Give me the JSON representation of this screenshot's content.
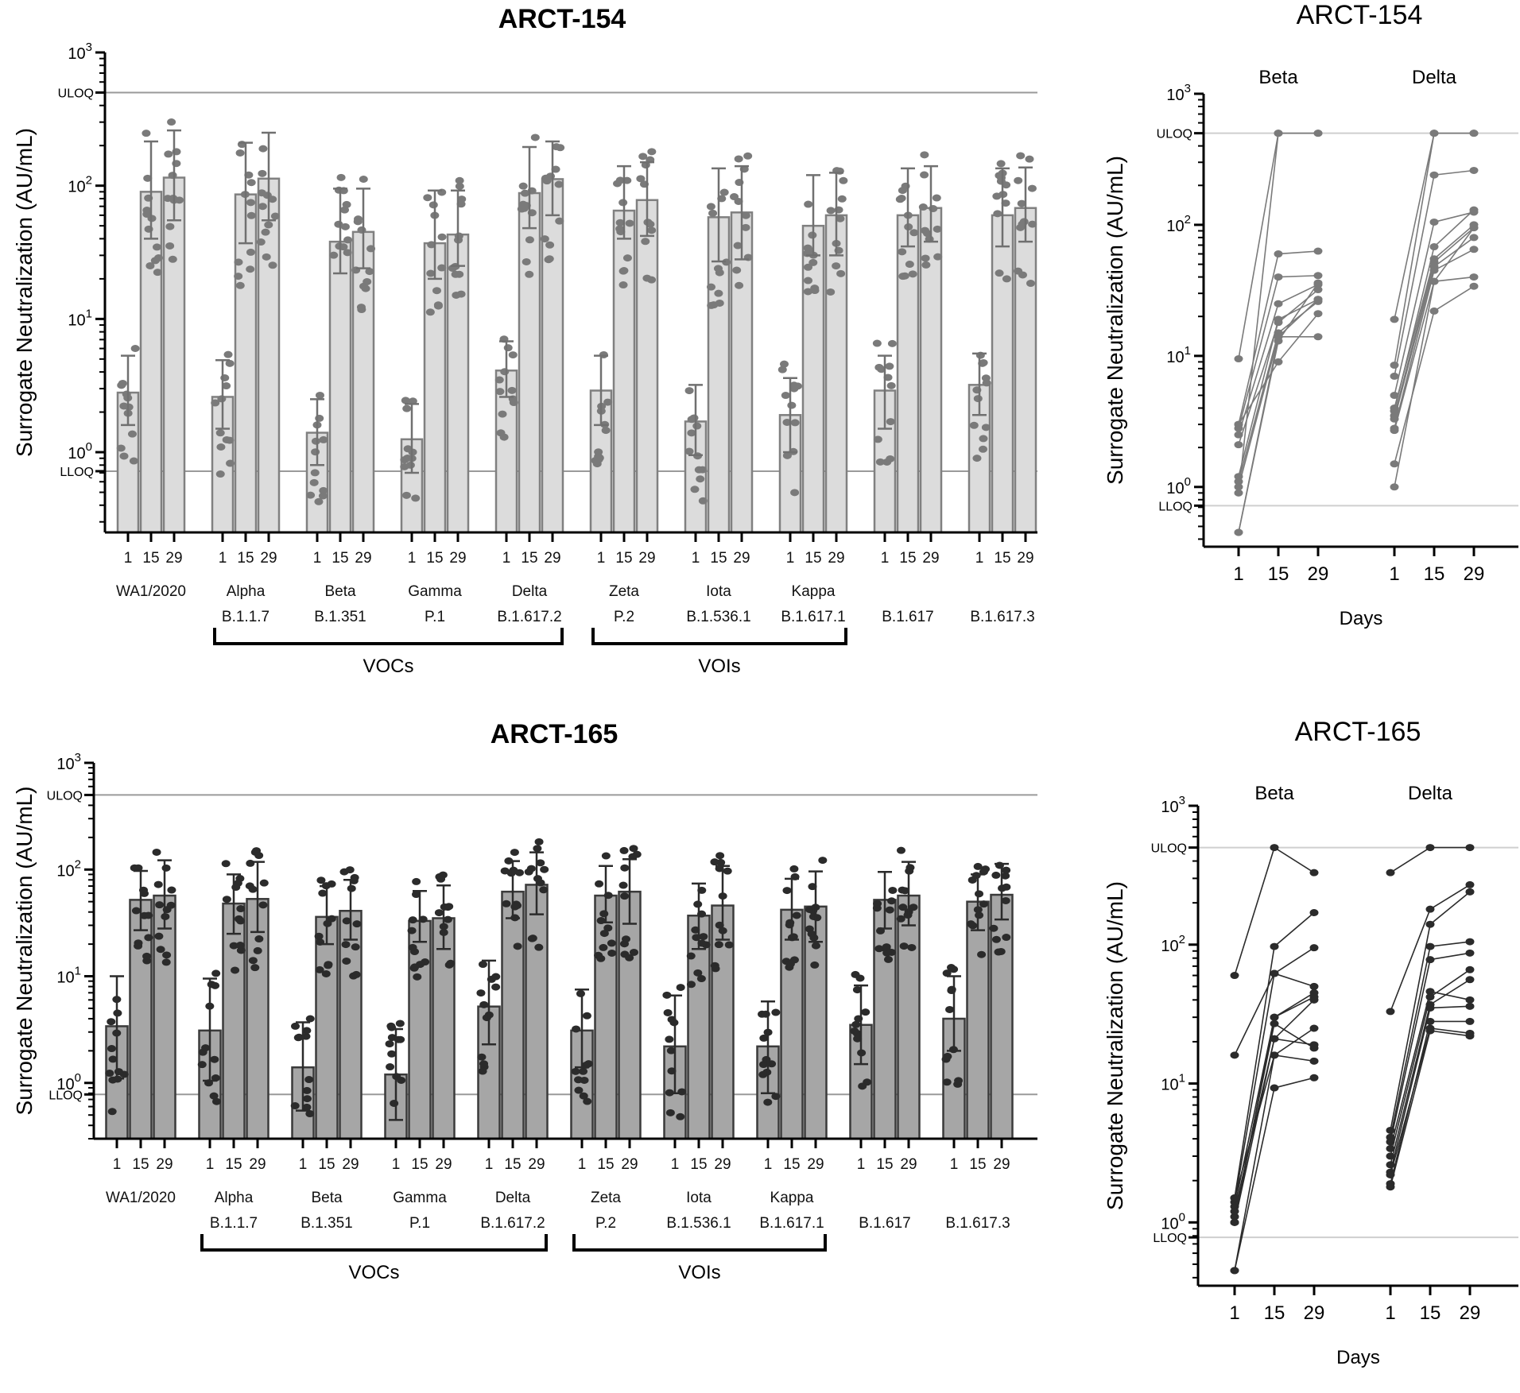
{
  "chart_data": [
    {
      "id": "top-bar",
      "type": "bar",
      "title": "ARCT-154",
      "ylabel": "Surrogate Neutralization (AU/mL)",
      "yscale": "log",
      "ylim": [
        0.25,
        1000
      ],
      "yticks": [
        "10^0",
        "10^1",
        "10^2",
        "10^3"
      ],
      "reference_lines": [
        {
          "label": "ULOQ",
          "value": 500
        },
        {
          "label": "LLOQ",
          "value": 0.72
        }
      ],
      "days": [
        "1",
        "15",
        "29"
      ],
      "categories": [
        {
          "name": "WA1/2020",
          "lineage": "",
          "means": [
            2.8,
            90,
            115
          ],
          "err_low": [
            1.6,
            40,
            55
          ],
          "err_high": [
            5.3,
            215,
            260
          ]
        },
        {
          "name": "Alpha",
          "lineage": "B.1.1.7",
          "means": [
            2.6,
            86,
            113
          ],
          "err_low": [
            1.5,
            37,
            55
          ],
          "err_high": [
            4.9,
            210,
            250
          ]
        },
        {
          "name": "Beta",
          "lineage": "B.1.351",
          "means": [
            1.4,
            38,
            45
          ],
          "err_low": [
            0.8,
            22,
            24
          ],
          "err_high": [
            2.5,
            95,
            95
          ]
        },
        {
          "name": "Gamma",
          "lineage": "P.1",
          "means": [
            1.25,
            37,
            43
          ],
          "err_low": [
            0.7,
            20,
            25
          ],
          "err_high": [
            2.3,
            92,
            92
          ]
        },
        {
          "name": "Delta",
          "lineage": "B.1.617.2",
          "means": [
            4.1,
            88,
            112
          ],
          "err_low": [
            2.6,
            48,
            60
          ],
          "err_high": [
            6.8,
            195,
            215
          ]
        },
        {
          "name": "Zeta",
          "lineage": "P.2",
          "means": [
            2.9,
            65,
            78
          ],
          "err_low": [
            1.6,
            40,
            42
          ],
          "err_high": [
            5.3,
            140,
            150
          ]
        },
        {
          "name": "Iota",
          "lineage": "B.1.536.1",
          "means": [
            1.7,
            58,
            63
          ],
          "err_low": [
            0.95,
            27,
            28
          ],
          "err_high": [
            3.2,
            135,
            140
          ]
        },
        {
          "name": "Kappa",
          "lineage": "B.1.617.1",
          "means": [
            1.9,
            50,
            60
          ],
          "err_low": [
            1.0,
            30,
            30
          ],
          "err_high": [
            3.6,
            120,
            125
          ]
        },
        {
          "name": "",
          "lineage": "B.1.617",
          "means": [
            2.9,
            60,
            68
          ],
          "err_low": [
            1.5,
            35,
            38
          ],
          "err_high": [
            5.3,
            135,
            140
          ]
        },
        {
          "name": "",
          "lineage": "B.1.617.3",
          "means": [
            3.2,
            60,
            68
          ],
          "err_low": [
            1.9,
            35,
            38
          ],
          "err_high": [
            5.5,
            135,
            137
          ]
        }
      ],
      "brackets": [
        {
          "label": "VOCs",
          "from": 1,
          "to": 4
        },
        {
          "label": "VOIs",
          "from": 5,
          "to": 7
        }
      ],
      "points_per_bar": 12,
      "bar_fill": "#dcdcdc",
      "point_color": "#7a7a7a"
    },
    {
      "id": "bottom-bar",
      "type": "bar",
      "title": "ARCT-165",
      "ylabel": "Surrogate Neutralization (AU/mL)",
      "yscale": "log",
      "ylim": [
        0.3,
        1000
      ],
      "yticks": [
        "10^0",
        "10^1",
        "10^2",
        "10^3"
      ],
      "reference_lines": [
        {
          "label": "ULOQ",
          "value": 500
        },
        {
          "label": "LLOQ",
          "value": 0.78
        }
      ],
      "days": [
        "1",
        "15",
        "29"
      ],
      "categories": [
        {
          "name": "WA1/2020",
          "lineage": "",
          "means": [
            3.4,
            52,
            57
          ],
          "err_low": [
            1.1,
            27,
            28
          ],
          "err_high": [
            10,
            97,
            122
          ]
        },
        {
          "name": "Alpha",
          "lineage": "B.1.1.7",
          "means": [
            3.1,
            48,
            53
          ],
          "err_low": [
            1.05,
            25,
            26
          ],
          "err_high": [
            9.5,
            90,
            118
          ]
        },
        {
          "name": "Beta",
          "lineage": "B.1.351",
          "means": [
            1.4,
            36,
            41
          ],
          "err_low": [
            0.55,
            20,
            22
          ],
          "err_high": [
            3.7,
            70,
            80
          ]
        },
        {
          "name": "Gamma",
          "lineage": "P.1",
          "means": [
            1.2,
            33,
            35
          ],
          "err_low": [
            0.45,
            21,
            18
          ],
          "err_high": [
            3.2,
            63,
            71
          ]
        },
        {
          "name": "Delta",
          "lineage": "B.1.617.2",
          "means": [
            5.2,
            62,
            72
          ],
          "err_low": [
            2.3,
            35,
            38
          ],
          "err_high": [
            14,
            120,
            145
          ]
        },
        {
          "name": "Zeta",
          "lineage": "P.2",
          "means": [
            3.1,
            57,
            62
          ],
          "err_low": [
            1.4,
            32,
            31
          ],
          "err_high": [
            7.5,
            108,
            125
          ]
        },
        {
          "name": "Iota",
          "lineage": "B.1.536.1",
          "means": [
            2.2,
            37,
            46
          ],
          "err_low": [
            0.8,
            18,
            22
          ],
          "err_high": [
            6.6,
            74,
            108
          ]
        },
        {
          "name": "Kappa",
          "lineage": "B.1.617.1",
          "means": [
            2.2,
            42,
            45
          ],
          "err_low": [
            0.8,
            22,
            21
          ],
          "err_high": [
            5.8,
            82,
            96
          ]
        },
        {
          "name": "",
          "lineage": "B.1.617",
          "means": [
            3.5,
            52,
            57
          ],
          "err_low": [
            1.5,
            28,
            30
          ],
          "err_high": [
            8.2,
            95,
            118
          ]
        },
        {
          "name": "",
          "lineage": "B.1.617.3",
          "means": [
            4.0,
            50,
            58
          ],
          "err_low": [
            2.0,
            27,
            34
          ],
          "err_high": [
            10,
            90,
            113
          ]
        }
      ],
      "brackets": [
        {
          "label": "VOCs",
          "from": 1,
          "to": 4
        },
        {
          "label": "VOIs",
          "from": 5,
          "to": 7
        }
      ],
      "points_per_bar": 12,
      "bar_fill": "#a6a6a6",
      "point_color": "#2b2b2b"
    },
    {
      "id": "top-line",
      "type": "line",
      "title": "ARCT-154",
      "xlabel": "Days",
      "ylabel": "Surrogate Neutralization (AU/mL)",
      "yscale": "log",
      "ylim": [
        0.35,
        1000
      ],
      "reference_lines": [
        {
          "label": "ULOQ",
          "value": 500
        },
        {
          "label": "LLOQ",
          "value": 0.72
        }
      ],
      "x": [
        "1",
        "15",
        "29"
      ],
      "panels": [
        {
          "name": "Beta",
          "subjects": [
            [
              9.5,
              500,
              500
            ],
            [
              3.0,
              60,
              63
            ],
            [
              2.8,
              40,
              41
            ],
            [
              2.5,
              25,
              35
            ],
            [
              2.1,
              18,
              32
            ],
            [
              1.2,
              19,
              27
            ],
            [
              1.1,
              15,
              26
            ],
            [
              1.0,
              14,
              27
            ],
            [
              0.9,
              500,
              500
            ],
            [
              3.0,
              9,
              21
            ],
            [
              0.45,
              14,
              14
            ],
            [
              0.45,
              13,
              36
            ]
          ]
        },
        {
          "name": "Delta",
          "subjects": [
            [
              19,
              500,
              500
            ],
            [
              8.5,
              500,
              500
            ],
            [
              7.0,
              240,
              260
            ],
            [
              5.0,
              105,
              125
            ],
            [
              3.8,
              68,
              130
            ],
            [
              3.5,
              52,
              95
            ],
            [
              3.3,
              48,
              80
            ],
            [
              2.8,
              45,
              65
            ],
            [
              2.7,
              37,
              40
            ],
            [
              1.5,
              22,
              34
            ],
            [
              1.0,
              37,
              95
            ],
            [
              4.0,
              55,
              100
            ]
          ]
        }
      ],
      "line_color": "#7a7a7a"
    },
    {
      "id": "bottom-line",
      "type": "line",
      "title": "ARCT-165",
      "xlabel": "Days",
      "ylabel": "Surrogate Neutralization (AU/mL)",
      "yscale": "log",
      "ylim": [
        0.35,
        1000
      ],
      "reference_lines": [
        {
          "label": "ULOQ",
          "value": 500
        },
        {
          "label": "LLOQ",
          "value": 0.78
        }
      ],
      "x": [
        "1",
        "15",
        "29"
      ],
      "panels": [
        {
          "name": "Beta",
          "subjects": [
            [
              60,
              500,
              330
            ],
            [
              16,
              62,
              95
            ],
            [
              1.5,
              97,
              170
            ],
            [
              1.4,
              62,
              50
            ],
            [
              1.3,
              30,
              45
            ],
            [
              1.1,
              27,
              18
            ],
            [
              1.0,
              21,
              40
            ],
            [
              1.0,
              30,
              42
            ],
            [
              0.45,
              16,
              25
            ],
            [
              0.45,
              9.3,
              11
            ],
            [
              1.2,
              21,
              19
            ],
            [
              1.5,
              16,
              14.5
            ]
          ]
        },
        {
          "name": "Delta",
          "subjects": [
            [
              330,
              500,
              500
            ],
            [
              33,
              180,
              270
            ],
            [
              4.6,
              140,
              240
            ],
            [
              4.1,
              97,
              105
            ],
            [
              3.8,
              78,
              87
            ],
            [
              3.4,
              46,
              40
            ],
            [
              3.0,
              42,
              66
            ],
            [
              2.6,
              37,
              56
            ],
            [
              2.3,
              35,
              36
            ],
            [
              1.9,
              28,
              28
            ],
            [
              1.8,
              24,
              22
            ],
            [
              2.2,
              25,
              23
            ]
          ]
        }
      ],
      "line_color": "#2b2b2b"
    }
  ]
}
